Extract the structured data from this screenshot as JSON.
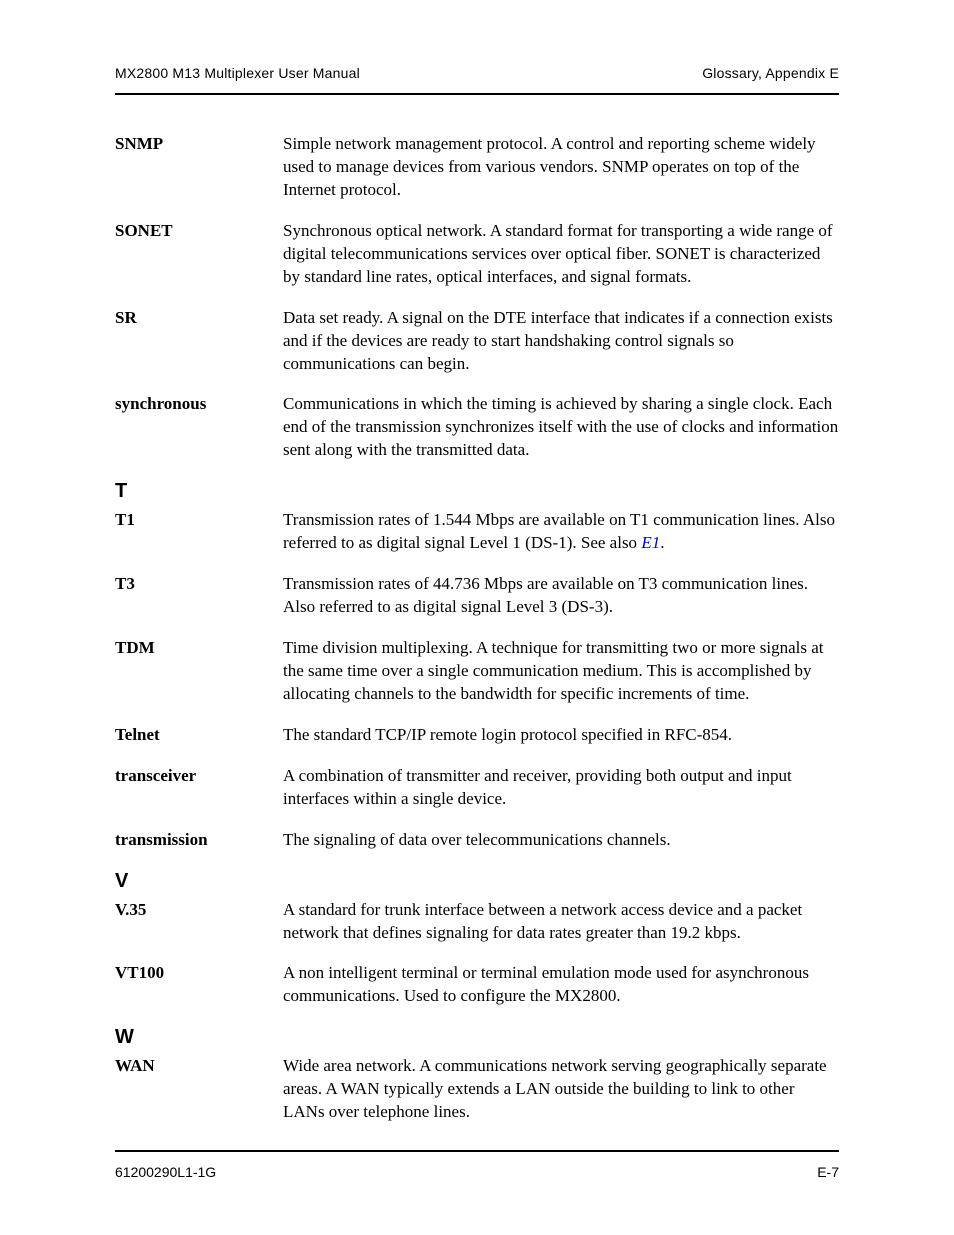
{
  "header": {
    "left": "MX2800 M13 Multiplexer User Manual",
    "right": "Glossary, Appendix E"
  },
  "footer": {
    "left": "61200290L1-1G",
    "right": "E-7"
  },
  "colors": {
    "text": "#000000",
    "link": "#0000cc",
    "rule": "#000000",
    "background": "#ffffff"
  },
  "typography": {
    "body_font": "Times New Roman",
    "header_font": "Helvetica",
    "body_size_pt": 12,
    "header_size_pt": 10,
    "section_letter_size_pt": 15
  },
  "S": {
    "snmp": {
      "term": "SNMP",
      "defn": "Simple network management protocol. A control and reporting scheme widely used to manage devices from various vendors. SNMP operates on top of the Internet protocol."
    },
    "sonet": {
      "term": "SONET",
      "defn": "Synchronous optical network. A standard format for transporting a wide range of digital telecommunications services over optical fiber. SONET is characterized by standard line rates, optical interfaces, and signal formats."
    },
    "sr": {
      "term": "SR",
      "defn": "Data set ready. A signal on the DTE interface that indicates if a connection exists and if the devices are ready to start handshaking control signals so communications can begin."
    },
    "synchronous": {
      "term": "synchronous",
      "defn": "Communications in which the timing is achieved by sharing a single clock. Each end of the transmission synchronizes itself with the use of clocks and information sent along with the transmitted data."
    }
  },
  "T": {
    "letter": "T",
    "t1": {
      "term": "T1",
      "defn_pre": "Transmission rates of 1.544 Mbps are available on T1 communication lines. Also referred to as digital signal Level 1 (DS-1). See also ",
      "link": "E1",
      "defn_post": "."
    },
    "t3": {
      "term": "T3",
      "defn": "Transmission rates of 44.736 Mbps are available on T3 communication lines. Also referred to as digital signal Level 3 (DS-3)."
    },
    "tdm": {
      "term": "TDM",
      "defn": "Time division multiplexing. A technique for transmitting two or more signals at the same time over a single communication medium. This is accomplished by allocating channels to the bandwidth for specific increments of time."
    },
    "telnet": {
      "term": "Telnet",
      "defn": "The standard TCP/IP remote login protocol specified in RFC-854."
    },
    "transceiver": {
      "term": "transceiver",
      "defn": "A combination of transmitter and receiver, providing both output and input interfaces within a single device."
    },
    "transmission": {
      "term": "transmission",
      "defn": "The signaling of data over telecommunications channels."
    }
  },
  "V": {
    "letter": "V",
    "v35": {
      "term": "V.35",
      "defn": "A standard for trunk interface between a network access device and a packet network that defines signaling for data rates greater than 19.2 kbps."
    },
    "vt100": {
      "term": "VT100",
      "defn": "A non intelligent terminal or terminal emulation mode used for asynchronous communications. Used to configure the MX2800."
    }
  },
  "W": {
    "letter": "W",
    "wan": {
      "term": "WAN",
      "defn": "Wide area network. A communications network serving geographically separate areas. A WAN typically extends a LAN outside the building to link to other LANs over telephone lines."
    }
  }
}
